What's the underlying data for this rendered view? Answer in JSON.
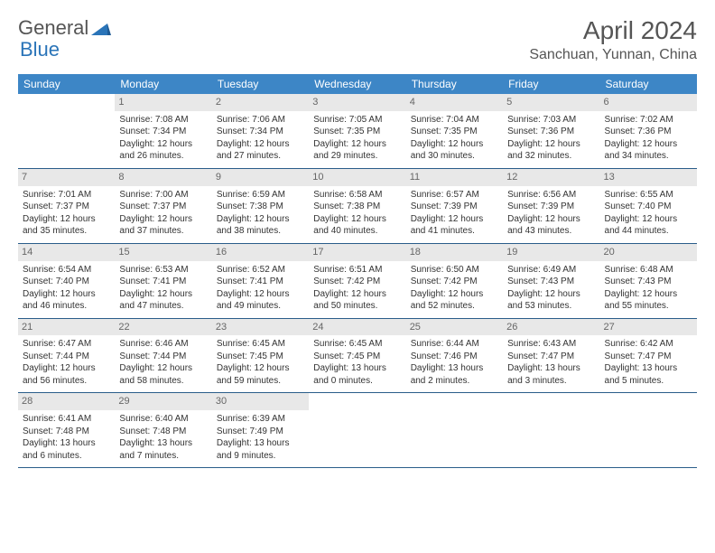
{
  "logo": {
    "text_general": "General",
    "text_blue": "Blue"
  },
  "title": "April 2024",
  "location": "Sanchuan, Yunnan, China",
  "weekdays": [
    "Sunday",
    "Monday",
    "Tuesday",
    "Wednesday",
    "Thursday",
    "Friday",
    "Saturday"
  ],
  "colors": {
    "header_bg": "#3d86c6",
    "header_text": "#ffffff",
    "daynum_bg": "#e8e8e8",
    "row_border": "#2a5d8a",
    "title_color": "#555555"
  },
  "weeks": [
    [
      {
        "day": "",
        "lines": []
      },
      {
        "day": "1",
        "lines": [
          "Sunrise: 7:08 AM",
          "Sunset: 7:34 PM",
          "Daylight: 12 hours",
          "and 26 minutes."
        ]
      },
      {
        "day": "2",
        "lines": [
          "Sunrise: 7:06 AM",
          "Sunset: 7:34 PM",
          "Daylight: 12 hours",
          "and 27 minutes."
        ]
      },
      {
        "day": "3",
        "lines": [
          "Sunrise: 7:05 AM",
          "Sunset: 7:35 PM",
          "Daylight: 12 hours",
          "and 29 minutes."
        ]
      },
      {
        "day": "4",
        "lines": [
          "Sunrise: 7:04 AM",
          "Sunset: 7:35 PM",
          "Daylight: 12 hours",
          "and 30 minutes."
        ]
      },
      {
        "day": "5",
        "lines": [
          "Sunrise: 7:03 AM",
          "Sunset: 7:36 PM",
          "Daylight: 12 hours",
          "and 32 minutes."
        ]
      },
      {
        "day": "6",
        "lines": [
          "Sunrise: 7:02 AM",
          "Sunset: 7:36 PM",
          "Daylight: 12 hours",
          "and 34 minutes."
        ]
      }
    ],
    [
      {
        "day": "7",
        "lines": [
          "Sunrise: 7:01 AM",
          "Sunset: 7:37 PM",
          "Daylight: 12 hours",
          "and 35 minutes."
        ]
      },
      {
        "day": "8",
        "lines": [
          "Sunrise: 7:00 AM",
          "Sunset: 7:37 PM",
          "Daylight: 12 hours",
          "and 37 minutes."
        ]
      },
      {
        "day": "9",
        "lines": [
          "Sunrise: 6:59 AM",
          "Sunset: 7:38 PM",
          "Daylight: 12 hours",
          "and 38 minutes."
        ]
      },
      {
        "day": "10",
        "lines": [
          "Sunrise: 6:58 AM",
          "Sunset: 7:38 PM",
          "Daylight: 12 hours",
          "and 40 minutes."
        ]
      },
      {
        "day": "11",
        "lines": [
          "Sunrise: 6:57 AM",
          "Sunset: 7:39 PM",
          "Daylight: 12 hours",
          "and 41 minutes."
        ]
      },
      {
        "day": "12",
        "lines": [
          "Sunrise: 6:56 AM",
          "Sunset: 7:39 PM",
          "Daylight: 12 hours",
          "and 43 minutes."
        ]
      },
      {
        "day": "13",
        "lines": [
          "Sunrise: 6:55 AM",
          "Sunset: 7:40 PM",
          "Daylight: 12 hours",
          "and 44 minutes."
        ]
      }
    ],
    [
      {
        "day": "14",
        "lines": [
          "Sunrise: 6:54 AM",
          "Sunset: 7:40 PM",
          "Daylight: 12 hours",
          "and 46 minutes."
        ]
      },
      {
        "day": "15",
        "lines": [
          "Sunrise: 6:53 AM",
          "Sunset: 7:41 PM",
          "Daylight: 12 hours",
          "and 47 minutes."
        ]
      },
      {
        "day": "16",
        "lines": [
          "Sunrise: 6:52 AM",
          "Sunset: 7:41 PM",
          "Daylight: 12 hours",
          "and 49 minutes."
        ]
      },
      {
        "day": "17",
        "lines": [
          "Sunrise: 6:51 AM",
          "Sunset: 7:42 PM",
          "Daylight: 12 hours",
          "and 50 minutes."
        ]
      },
      {
        "day": "18",
        "lines": [
          "Sunrise: 6:50 AM",
          "Sunset: 7:42 PM",
          "Daylight: 12 hours",
          "and 52 minutes."
        ]
      },
      {
        "day": "19",
        "lines": [
          "Sunrise: 6:49 AM",
          "Sunset: 7:43 PM",
          "Daylight: 12 hours",
          "and 53 minutes."
        ]
      },
      {
        "day": "20",
        "lines": [
          "Sunrise: 6:48 AM",
          "Sunset: 7:43 PM",
          "Daylight: 12 hours",
          "and 55 minutes."
        ]
      }
    ],
    [
      {
        "day": "21",
        "lines": [
          "Sunrise: 6:47 AM",
          "Sunset: 7:44 PM",
          "Daylight: 12 hours",
          "and 56 minutes."
        ]
      },
      {
        "day": "22",
        "lines": [
          "Sunrise: 6:46 AM",
          "Sunset: 7:44 PM",
          "Daylight: 12 hours",
          "and 58 minutes."
        ]
      },
      {
        "day": "23",
        "lines": [
          "Sunrise: 6:45 AM",
          "Sunset: 7:45 PM",
          "Daylight: 12 hours",
          "and 59 minutes."
        ]
      },
      {
        "day": "24",
        "lines": [
          "Sunrise: 6:45 AM",
          "Sunset: 7:45 PM",
          "Daylight: 13 hours",
          "and 0 minutes."
        ]
      },
      {
        "day": "25",
        "lines": [
          "Sunrise: 6:44 AM",
          "Sunset: 7:46 PM",
          "Daylight: 13 hours",
          "and 2 minutes."
        ]
      },
      {
        "day": "26",
        "lines": [
          "Sunrise: 6:43 AM",
          "Sunset: 7:47 PM",
          "Daylight: 13 hours",
          "and 3 minutes."
        ]
      },
      {
        "day": "27",
        "lines": [
          "Sunrise: 6:42 AM",
          "Sunset: 7:47 PM",
          "Daylight: 13 hours",
          "and 5 minutes."
        ]
      }
    ],
    [
      {
        "day": "28",
        "lines": [
          "Sunrise: 6:41 AM",
          "Sunset: 7:48 PM",
          "Daylight: 13 hours",
          "and 6 minutes."
        ]
      },
      {
        "day": "29",
        "lines": [
          "Sunrise: 6:40 AM",
          "Sunset: 7:48 PM",
          "Daylight: 13 hours",
          "and 7 minutes."
        ]
      },
      {
        "day": "30",
        "lines": [
          "Sunrise: 6:39 AM",
          "Sunset: 7:49 PM",
          "Daylight: 13 hours",
          "and 9 minutes."
        ]
      },
      {
        "day": "",
        "lines": []
      },
      {
        "day": "",
        "lines": []
      },
      {
        "day": "",
        "lines": []
      },
      {
        "day": "",
        "lines": []
      }
    ]
  ]
}
